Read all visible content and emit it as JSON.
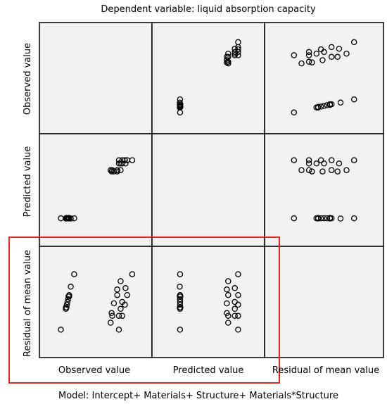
{
  "chart_data": {
    "type": "scatter",
    "title": "Dependent variable: liquid absorption capacity",
    "footer": "Model: Intercept+ Materials+ Structure+ Materials*Structure",
    "variables": [
      "Observed value",
      "Predicted value",
      "Residual of mean value"
    ],
    "row_labels": [
      "Observed value",
      "Predicted value",
      "Residual of mean value"
    ],
    "col_labels": [
      "Observed value",
      "Predicted value",
      "Residual of mean value"
    ],
    "highlight": {
      "rows": [
        2
      ],
      "cols": [
        0,
        1
      ],
      "color": "#e8281e"
    },
    "grid": false,
    "observations": [
      {
        "observed": 2.0,
        "predicted": 1.95,
        "residual": 0.05
      },
      {
        "observed": 1.95,
        "predicted": 1.95,
        "residual": 0.0
      },
      {
        "observed": 1.9,
        "predicted": 1.95,
        "residual": -0.05
      },
      {
        "observed": 1.97,
        "predicted": 1.95,
        "residual": 0.02
      },
      {
        "observed": 1.93,
        "predicted": 1.95,
        "residual": -0.02
      },
      {
        "observed": 2.15,
        "predicted": 1.95,
        "residual": 0.2
      },
      {
        "observed": 1.75,
        "predicted": 1.95,
        "residual": -0.2
      },
      {
        "observed": 2.0,
        "predicted": 1.96,
        "residual": 0.04
      },
      {
        "observed": 1.92,
        "predicted": 1.96,
        "residual": -0.04
      },
      {
        "observed": 1.98,
        "predicted": 1.94,
        "residual": 0.04
      },
      {
        "observed": 1.9,
        "predicted": 1.94,
        "residual": -0.04
      },
      {
        "observed": 2.05,
        "predicted": 1.94,
        "residual": 0.11
      },
      {
        "observed": 3.55,
        "predicted": 3.4,
        "residual": 0.15
      },
      {
        "observed": 3.25,
        "predicted": 3.4,
        "residual": -0.15
      },
      {
        "observed": 3.45,
        "predicted": 3.4,
        "residual": 0.05
      },
      {
        "observed": 3.3,
        "predicted": 3.4,
        "residual": -0.1
      },
      {
        "observed": 3.45,
        "predicted": 3.36,
        "residual": 0.09
      },
      {
        "observed": 3.28,
        "predicted": 3.36,
        "residual": -0.08
      },
      {
        "observed": 3.35,
        "predicted": 3.36,
        "residual": -0.01
      },
      {
        "observed": 3.55,
        "predicted": 3.6,
        "residual": -0.05
      },
      {
        "observed": 3.5,
        "predicted": 3.6,
        "residual": -0.1
      },
      {
        "observed": 3.7,
        "predicted": 3.6,
        "residual": 0.1
      },
      {
        "observed": 3.6,
        "predicted": 3.6,
        "residual": 0.0
      },
      {
        "observed": 3.75,
        "predicted": 3.7,
        "residual": 0.05
      },
      {
        "observed": 3.6,
        "predicted": 3.7,
        "residual": -0.1
      },
      {
        "observed": 3.9,
        "predicted": 3.7,
        "residual": 0.2
      },
      {
        "observed": 3.68,
        "predicted": 3.7,
        "residual": -0.02
      },
      {
        "observed": 3.5,
        "predicted": 3.7,
        "residual": -0.2
      }
    ],
    "ranges": {
      "observed": [
        1.4,
        4.2
      ],
      "predicted": [
        1.4,
        4.2
      ],
      "residual": [
        -0.33,
        0.33
      ]
    }
  }
}
